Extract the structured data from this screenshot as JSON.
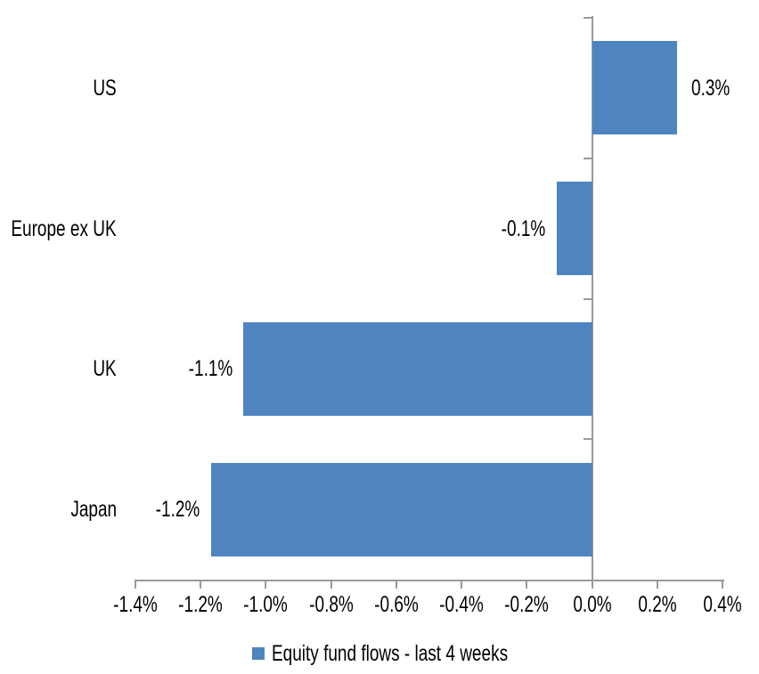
{
  "chart_data": {
    "type": "bar",
    "orientation": "horizontal",
    "title": "",
    "categories": [
      "US",
      "Europe ex UK",
      "UK",
      "Japan"
    ],
    "values": [
      0.26,
      -0.11,
      -1.07,
      -1.17
    ],
    "data_labels": [
      "0.3%",
      "-0.1%",
      "-1.1%",
      "-1.2%"
    ],
    "series_name": "Equity fund flows - last 4 weeks",
    "x_axis": {
      "min": -1.4,
      "max": 0.4,
      "step": 0.2,
      "tick_labels": [
        "-1.4%",
        "-1.2%",
        "-1.0%",
        "-0.8%",
        "-0.6%",
        "-0.4%",
        "-0.2%",
        "0.0%",
        "0.2%",
        "0.4%"
      ]
    },
    "legend_position": "bottom-center",
    "grid": false,
    "colors": {
      "bar": "#4E84BF",
      "axis": "#9A9A9A",
      "text": "#000000",
      "background": "#FFFFFF"
    }
  }
}
